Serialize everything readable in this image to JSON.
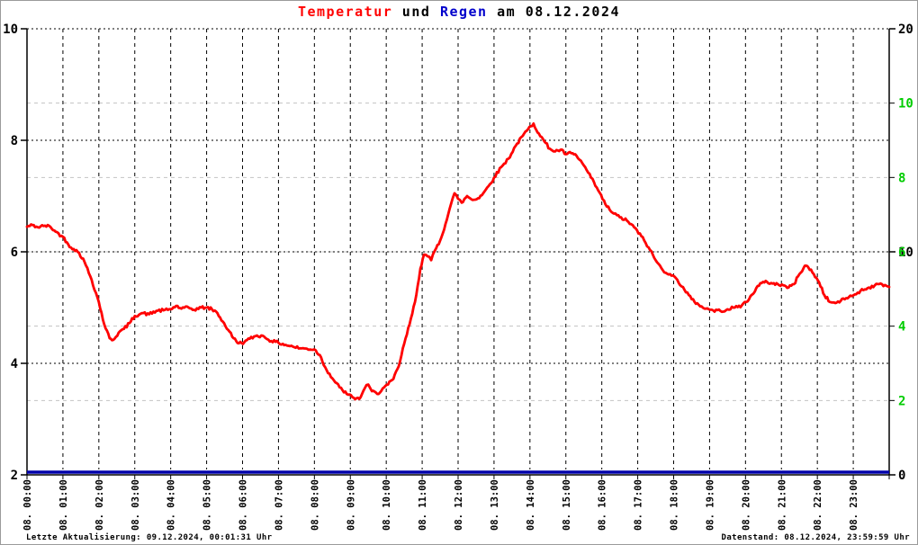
{
  "title": {
    "part1": "Temperatur",
    "part2": " und ",
    "part3": "Regen",
    "part4": " am 08.12.2024"
  },
  "footer": {
    "left": "Letzte Aktualisierung: 09.12.2024, 00:01:31 Uhr",
    "right": "Datenstand: 08.12.2024, 23:59:59 Uhr"
  },
  "colors": {
    "temperature": "#ff0000",
    "rain": "#0000aa",
    "title_blue": "#0000cc",
    "green_axis": "#00cc00",
    "grid_black": "#000000",
    "grid_gray": "#c3c3c3",
    "frame": "#999999",
    "background": "#ffffff"
  },
  "chart_data": {
    "type": "line",
    "title": "Temperatur und Regen am 08.12.2024",
    "x_axis": {
      "range_hours": [
        0,
        24
      ],
      "labels": [
        "08. 00:00",
        "08. 01:00",
        "08. 02:00",
        "08. 03:00",
        "08. 04:00",
        "08. 05:00",
        "08. 06:00",
        "08. 07:00",
        "08. 08:00",
        "08. 09:00",
        "08. 10:00",
        "08. 11:00",
        "08. 12:00",
        "08. 13:00",
        "08. 14:00",
        "08. 15:00",
        "08. 16:00",
        "08. 17:00",
        "08. 18:00",
        "08. 19:00",
        "08. 20:00",
        "08. 21:00",
        "08. 22:00",
        "08. 23:00"
      ]
    },
    "y_axis_left": {
      "min": 2,
      "max": 10,
      "ticks": [
        2,
        4,
        6,
        8,
        10
      ]
    },
    "y_axis_right_black": {
      "min": 0,
      "max": 20,
      "ticks": [
        0,
        10,
        20
      ]
    },
    "y_axis_right_green": {
      "min": 0,
      "max": 12,
      "ticks": [
        2,
        4,
        6,
        8,
        10
      ]
    },
    "series": [
      {
        "name": "Temperatur",
        "color": "#ff0000",
        "points": [
          [
            0,
            6.45
          ],
          [
            0.15,
            6.48
          ],
          [
            0.3,
            6.44
          ],
          [
            0.5,
            6.47
          ],
          [
            0.65,
            6.45
          ],
          [
            0.8,
            6.36
          ],
          [
            1.0,
            6.27
          ],
          [
            1.15,
            6.13
          ],
          [
            1.3,
            6.05
          ],
          [
            1.45,
            5.98
          ],
          [
            1.6,
            5.82
          ],
          [
            1.8,
            5.5
          ],
          [
            2.0,
            5.1
          ],
          [
            2.15,
            4.7
          ],
          [
            2.3,
            4.45
          ],
          [
            2.4,
            4.42
          ],
          [
            2.55,
            4.55
          ],
          [
            2.7,
            4.62
          ],
          [
            2.85,
            4.72
          ],
          [
            3.0,
            4.85
          ],
          [
            3.2,
            4.9
          ],
          [
            3.4,
            4.88
          ],
          [
            3.6,
            4.94
          ],
          [
            3.8,
            4.95
          ],
          [
            4.0,
            4.97
          ],
          [
            4.15,
            5.03
          ],
          [
            4.3,
            4.98
          ],
          [
            4.5,
            5.0
          ],
          [
            4.65,
            4.96
          ],
          [
            4.85,
            5.0
          ],
          [
            5.0,
            5.0
          ],
          [
            5.15,
            4.97
          ],
          [
            5.3,
            4.9
          ],
          [
            5.45,
            4.75
          ],
          [
            5.6,
            4.6
          ],
          [
            5.75,
            4.45
          ],
          [
            5.9,
            4.36
          ],
          [
            6.05,
            4.38
          ],
          [
            6.2,
            4.44
          ],
          [
            6.4,
            4.5
          ],
          [
            6.6,
            4.48
          ],
          [
            6.8,
            4.4
          ],
          [
            7.0,
            4.37
          ],
          [
            7.2,
            4.33
          ],
          [
            7.4,
            4.3
          ],
          [
            7.6,
            4.27
          ],
          [
            7.8,
            4.26
          ],
          [
            8.0,
            4.25
          ],
          [
            8.15,
            4.15
          ],
          [
            8.3,
            3.93
          ],
          [
            8.5,
            3.73
          ],
          [
            8.7,
            3.57
          ],
          [
            8.9,
            3.45
          ],
          [
            9.1,
            3.38
          ],
          [
            9.25,
            3.36
          ],
          [
            9.4,
            3.55
          ],
          [
            9.5,
            3.62
          ],
          [
            9.6,
            3.5
          ],
          [
            9.75,
            3.45
          ],
          [
            9.9,
            3.55
          ],
          [
            10.05,
            3.62
          ],
          [
            10.2,
            3.72
          ],
          [
            10.35,
            3.95
          ],
          [
            10.5,
            4.35
          ],
          [
            10.65,
            4.7
          ],
          [
            10.8,
            5.1
          ],
          [
            10.95,
            5.7
          ],
          [
            11.05,
            5.95
          ],
          [
            11.15,
            5.92
          ],
          [
            11.25,
            5.85
          ],
          [
            11.35,
            6.02
          ],
          [
            11.5,
            6.2
          ],
          [
            11.65,
            6.5
          ],
          [
            11.8,
            6.85
          ],
          [
            11.9,
            7.05
          ],
          [
            12.0,
            6.95
          ],
          [
            12.1,
            6.88
          ],
          [
            12.25,
            7.0
          ],
          [
            12.4,
            6.93
          ],
          [
            12.55,
            6.96
          ],
          [
            12.7,
            7.05
          ],
          [
            12.85,
            7.18
          ],
          [
            13.0,
            7.33
          ],
          [
            13.2,
            7.52
          ],
          [
            13.4,
            7.67
          ],
          [
            13.6,
            7.9
          ],
          [
            13.8,
            8.08
          ],
          [
            13.95,
            8.2
          ],
          [
            14.1,
            8.3
          ],
          [
            14.25,
            8.12
          ],
          [
            14.4,
            7.98
          ],
          [
            14.55,
            7.85
          ],
          [
            14.7,
            7.8
          ],
          [
            14.85,
            7.83
          ],
          [
            15.0,
            7.75
          ],
          [
            15.15,
            7.77
          ],
          [
            15.3,
            7.72
          ],
          [
            15.5,
            7.55
          ],
          [
            15.7,
            7.33
          ],
          [
            15.9,
            7.1
          ],
          [
            16.1,
            6.85
          ],
          [
            16.3,
            6.7
          ],
          [
            16.5,
            6.62
          ],
          [
            16.7,
            6.56
          ],
          [
            16.9,
            6.44
          ],
          [
            17.1,
            6.28
          ],
          [
            17.3,
            6.08
          ],
          [
            17.5,
            5.85
          ],
          [
            17.7,
            5.67
          ],
          [
            17.9,
            5.6
          ],
          [
            18.1,
            5.5
          ],
          [
            18.3,
            5.32
          ],
          [
            18.5,
            5.15
          ],
          [
            18.7,
            5.05
          ],
          [
            18.9,
            4.98
          ],
          [
            19.1,
            4.95
          ],
          [
            19.3,
            4.94
          ],
          [
            19.5,
            4.97
          ],
          [
            19.7,
            5.0
          ],
          [
            19.9,
            5.04
          ],
          [
            20.1,
            5.15
          ],
          [
            20.3,
            5.35
          ],
          [
            20.45,
            5.44
          ],
          [
            20.6,
            5.46
          ],
          [
            20.75,
            5.43
          ],
          [
            20.9,
            5.42
          ],
          [
            21.05,
            5.4
          ],
          [
            21.2,
            5.36
          ],
          [
            21.35,
            5.42
          ],
          [
            21.5,
            5.6
          ],
          [
            21.65,
            5.75
          ],
          [
            21.75,
            5.72
          ],
          [
            21.9,
            5.6
          ],
          [
            22.05,
            5.45
          ],
          [
            22.2,
            5.22
          ],
          [
            22.35,
            5.1
          ],
          [
            22.5,
            5.08
          ],
          [
            22.65,
            5.12
          ],
          [
            22.8,
            5.17
          ],
          [
            23.0,
            5.22
          ],
          [
            23.2,
            5.3
          ],
          [
            23.4,
            5.35
          ],
          [
            23.6,
            5.4
          ],
          [
            23.8,
            5.42
          ],
          [
            24.0,
            5.37
          ]
        ]
      },
      {
        "name": "Regen",
        "color": "#0000aa",
        "points": [
          [
            0,
            0
          ],
          [
            24,
            0
          ]
        ]
      }
    ]
  }
}
